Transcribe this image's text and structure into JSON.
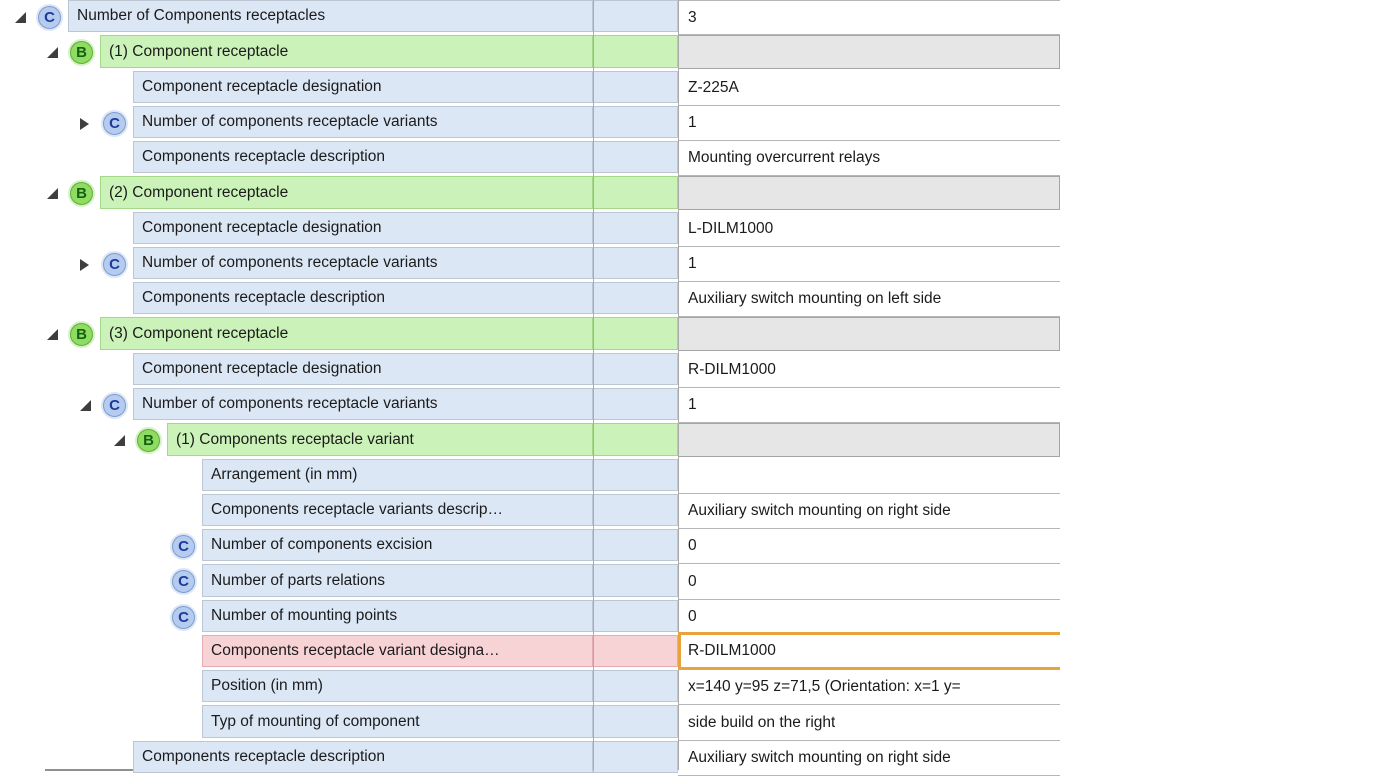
{
  "colors": {
    "row_blue": "#DCE7F6",
    "row_green": "#CBF2B8",
    "row_pink": "#F8D3D6",
    "group_value_grey": "#E6E6E6",
    "edit_border_orange": "#E8A33C",
    "badge_c_fill": "#B6CCEF",
    "badge_c_letter": "#1D3A9E",
    "badge_b_fill": "#8FDC62",
    "badge_b_letter": "#146114"
  },
  "table": {
    "rows": [
      {
        "level": 0,
        "badge": "C",
        "expand": "expanded",
        "color": "blue",
        "kind": "text",
        "label": "Number of Components receptacles",
        "value": "3"
      },
      {
        "level": 1,
        "badge": "B",
        "expand": "expanded",
        "color": "green",
        "kind": "group",
        "label": "(1) Component receptacle",
        "value": ""
      },
      {
        "level": 2,
        "badge": null,
        "expand": null,
        "color": "blue",
        "kind": "text",
        "label": "Component receptacle designation",
        "value": "Z-225A"
      },
      {
        "level": 2,
        "badge": "C",
        "expand": "collapsed",
        "color": "blue",
        "kind": "text",
        "label": "Number of components receptacle variants",
        "value": "1"
      },
      {
        "level": 2,
        "badge": null,
        "expand": null,
        "color": "blue",
        "kind": "text",
        "label": "Components receptacle description",
        "value": "Mounting overcurrent relays"
      },
      {
        "level": 1,
        "badge": "B",
        "expand": "expanded",
        "color": "green",
        "kind": "group",
        "label": "(2) Component receptacle",
        "value": ""
      },
      {
        "level": 2,
        "badge": null,
        "expand": null,
        "color": "blue",
        "kind": "text",
        "label": "Component receptacle designation",
        "value": "L-DILM1000"
      },
      {
        "level": 2,
        "badge": "C",
        "expand": "collapsed",
        "color": "blue",
        "kind": "text",
        "label": "Number of components receptacle variants",
        "value": "1"
      },
      {
        "level": 2,
        "badge": null,
        "expand": null,
        "color": "blue",
        "kind": "text",
        "label": "Components receptacle description",
        "value": "Auxiliary switch mounting on left side"
      },
      {
        "level": 1,
        "badge": "B",
        "expand": "expanded",
        "color": "green",
        "kind": "group",
        "label": "(3) Component receptacle",
        "value": ""
      },
      {
        "level": 2,
        "badge": null,
        "expand": null,
        "color": "blue",
        "kind": "text",
        "label": "Component receptacle designation",
        "value": "R-DILM1000"
      },
      {
        "level": 2,
        "badge": "C",
        "expand": "expanded",
        "color": "blue",
        "kind": "text",
        "label": "Number of components receptacle variants",
        "value": "1"
      },
      {
        "level": 3,
        "badge": "B",
        "expand": "expanded",
        "color": "green",
        "kind": "group",
        "label": "(1) Components receptacle variant",
        "value": ""
      },
      {
        "level": 4,
        "badge": null,
        "expand": null,
        "color": "blue",
        "kind": "text",
        "label": "Arrangement (in mm)",
        "value": ""
      },
      {
        "level": 4,
        "badge": null,
        "expand": null,
        "color": "blue",
        "kind": "text",
        "label": "Components receptacle variants descrip…",
        "value": "Auxiliary switch mounting on right side"
      },
      {
        "level": 4,
        "badge": "C",
        "expand": null,
        "color": "blue",
        "kind": "text",
        "label": "Number of components excision",
        "value": "0"
      },
      {
        "level": 4,
        "badge": "C",
        "expand": null,
        "color": "blue",
        "kind": "text",
        "label": "Number of parts relations",
        "value": "0"
      },
      {
        "level": 4,
        "badge": "C",
        "expand": null,
        "color": "blue",
        "kind": "text",
        "label": "Number of mounting points",
        "value": "0"
      },
      {
        "level": 4,
        "badge": null,
        "expand": null,
        "color": "pink",
        "kind": "edit",
        "label": "Components receptacle variant designa…",
        "value": "R-DILM1000"
      },
      {
        "level": 4,
        "badge": null,
        "expand": null,
        "color": "blue",
        "kind": "text",
        "label": "Position (in mm)",
        "value": "x=140 y=95 z=71,5 (Orientation: x=1 y="
      },
      {
        "level": 4,
        "badge": null,
        "expand": null,
        "color": "blue",
        "kind": "text",
        "label": "Typ of mounting of component",
        "value": "side build on the right"
      },
      {
        "level": 2,
        "badge": null,
        "expand": null,
        "color": "blue",
        "kind": "text",
        "label": "Components receptacle description",
        "value": "Auxiliary switch mounting on right side"
      }
    ]
  }
}
